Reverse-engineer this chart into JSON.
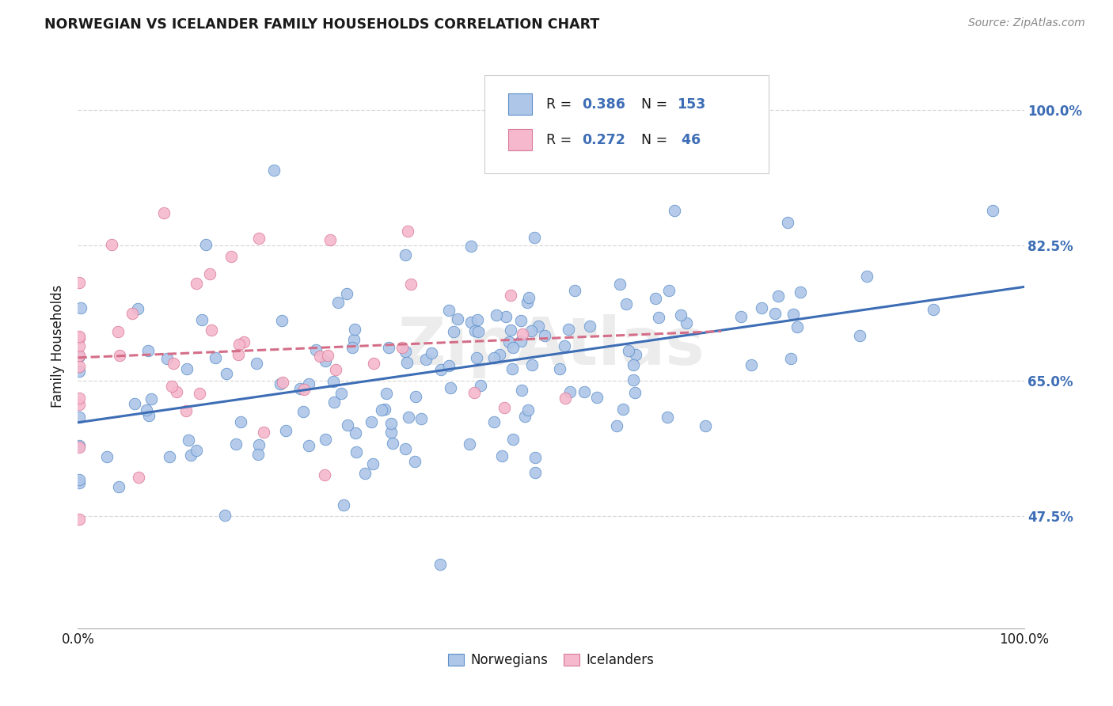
{
  "title": "NORWEGIAN VS ICELANDER FAMILY HOUSEHOLDS CORRELATION CHART",
  "source": "Source: ZipAtlas.com",
  "ylabel": "Family Households",
  "ytick_labels": [
    "47.5%",
    "65.0%",
    "82.5%",
    "100.0%"
  ],
  "ytick_values": [
    0.475,
    0.65,
    0.825,
    1.0
  ],
  "xlim": [
    0.0,
    1.0
  ],
  "ylim": [
    0.33,
    1.06
  ],
  "blue_color": "#aec6e8",
  "pink_color": "#f5b8cc",
  "blue_edge_color": "#5b8fc9",
  "pink_edge_color": "#d97a96",
  "blue_line_color": "#3d6db5",
  "pink_line_color": "#d46e88",
  "watermark": "ZipAtlas",
  "background_color": "#ffffff",
  "grid_color": "#d8d8d8",
  "N_blue": 153,
  "N_pink": 46,
  "R_blue": 0.386,
  "R_pink": 0.272,
  "seed_blue": 42,
  "seed_pink": 7,
  "legend_R1": "0.386",
  "legend_N1": "153",
  "legend_R2": "0.272",
  "legend_N2": " 46",
  "legend_label1": "Norwegians",
  "legend_label2": "Icelanders",
  "title_color": "#1a1a1a",
  "source_color": "#888888",
  "label_color": "#3d6db5",
  "text_color": "#1a1a1a"
}
